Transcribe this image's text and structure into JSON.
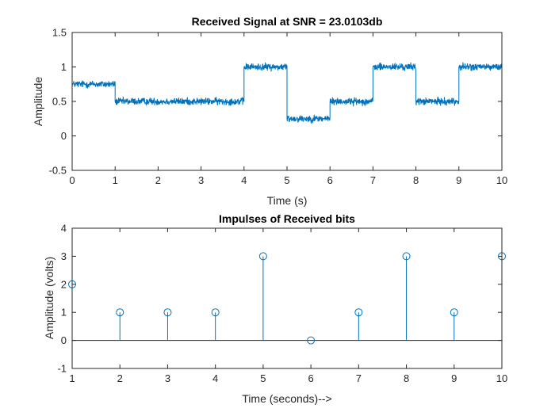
{
  "chart_data": [
    {
      "type": "line",
      "title": "Received Signal at SNR = 23.0103db",
      "xlabel": "Time (s)",
      "ylabel": "Amplitude",
      "xlim": [
        0,
        10
      ],
      "ylim": [
        -0.5,
        1.5
      ],
      "xticks": [
        "0",
        "1",
        "2",
        "3",
        "4",
        "5",
        "6",
        "7",
        "8",
        "9",
        "10"
      ],
      "yticks": [
        "-0.5",
        "0",
        "0.5",
        "1",
        "1.5"
      ],
      "grid": false,
      "color": "#0072BD",
      "noise_amplitude": 0.05,
      "segments": [
        {
          "x": [
            0,
            1
          ],
          "y": 0.75
        },
        {
          "x": [
            1,
            4
          ],
          "y": 0.5
        },
        {
          "x": [
            4,
            5
          ],
          "y": 1.0
        },
        {
          "x": [
            5,
            6
          ],
          "y": 0.25
        },
        {
          "x": [
            6,
            7
          ],
          "y": 0.5
        },
        {
          "x": [
            7,
            8
          ],
          "y": 1.0
        },
        {
          "x": [
            8,
            9
          ],
          "y": 0.5
        },
        {
          "x": [
            9,
            10
          ],
          "y": 1.0
        }
      ]
    },
    {
      "type": "stem",
      "title": "Impulses of Received bits",
      "xlabel": "Time (seconds)-->",
      "ylabel": "Amplitude (volts)",
      "xlim": [
        1,
        10
      ],
      "ylim": [
        -1,
        4
      ],
      "xticks": [
        "1",
        "2",
        "3",
        "4",
        "5",
        "6",
        "7",
        "8",
        "9",
        "10"
      ],
      "yticks": [
        "-1",
        "0",
        "1",
        "2",
        "3",
        "4"
      ],
      "grid": false,
      "color": "#0072BD",
      "baseline": 0,
      "x": [
        1,
        2,
        3,
        4,
        5,
        6,
        7,
        8,
        9,
        10
      ],
      "y": [
        2,
        1,
        1,
        1,
        3,
        0,
        1,
        3,
        1,
        3
      ]
    }
  ]
}
